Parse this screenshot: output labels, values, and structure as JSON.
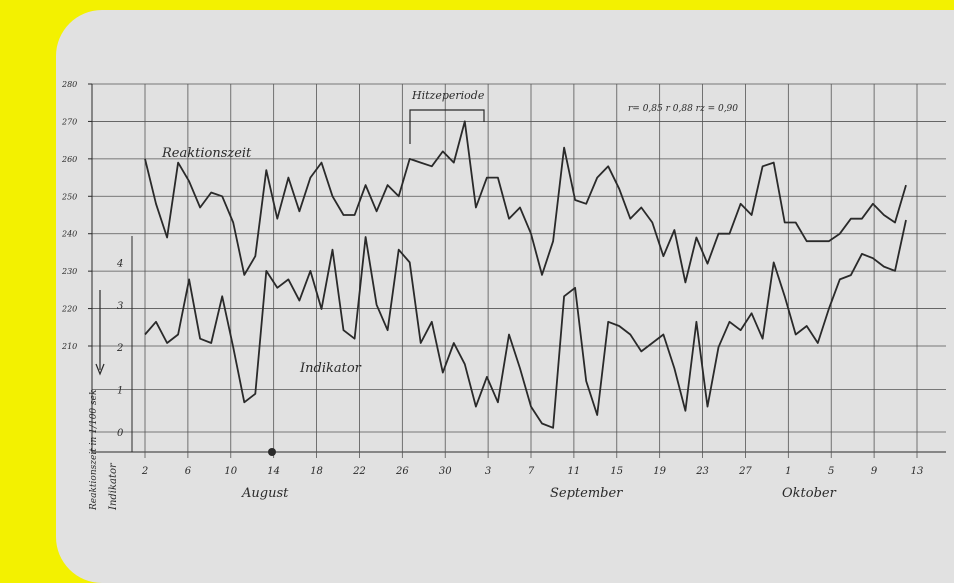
{
  "chart_data": {
    "type": "line",
    "title": "",
    "annotation_stats": "r= 0,85  r 0,88   rz = 0,90",
    "annotation_period": "Hitzeperiode",
    "series": [
      {
        "name": "Reaktionszeit",
        "axis": "left",
        "values": [
          260,
          248,
          239,
          259,
          254,
          247,
          251,
          250,
          243,
          229,
          234,
          257,
          244,
          255,
          246,
          255,
          259,
          250,
          245,
          245,
          253,
          246,
          253,
          250,
          260,
          259,
          258,
          262,
          259,
          270,
          247,
          255,
          255,
          244,
          247,
          240,
          229,
          238,
          263,
          249,
          248,
          255,
          258,
          252,
          244,
          247,
          243,
          234,
          241,
          227,
          239,
          232,
          240,
          240,
          248,
          245,
          258,
          259,
          243,
          243,
          238,
          238,
          238,
          240,
          244,
          244,
          248,
          245,
          243,
          253
        ]
      },
      {
        "name": "Indikator",
        "axis": "right",
        "values": [
          2.3,
          2.6,
          2.1,
          2.3,
          3.6,
          2.2,
          2.1,
          3.2,
          2.0,
          0.7,
          0.9,
          3.8,
          3.4,
          3.6,
          3.1,
          3.8,
          2.9,
          4.3,
          2.4,
          2.2,
          4.6,
          3.0,
          2.4,
          4.3,
          4.0,
          2.1,
          2.6,
          1.4,
          2.1,
          1.6,
          0.6,
          1.3,
          0.7,
          2.3,
          1.5,
          0.6,
          0.2,
          0.1,
          3.2,
          3.4,
          1.2,
          0.4,
          2.6,
          2.5,
          2.3,
          1.9,
          2.1,
          2.3,
          1.5,
          0.5,
          2.6,
          0.6,
          2.0,
          2.6,
          2.4,
          2.8,
          2.2,
          4.0,
          3.2,
          2.3,
          2.5,
          2.1,
          2.9,
          3.6,
          3.7,
          4.2,
          4.1,
          3.9,
          3.8,
          5.0
        ]
      }
    ],
    "y_left": {
      "range": [
        0,
        280
      ],
      "ticks": [
        "210",
        "220",
        "230",
        "240",
        "250",
        "260",
        "270",
        "280"
      ]
    },
    "y_right": {
      "range": [
        0,
        5
      ],
      "ticks": [
        "0",
        "1",
        "2",
        "3",
        "4"
      ]
    },
    "ylabel_left": "Reaktionszeit in 1/100 sek",
    "ylabel_right": "Indikator",
    "x_ticks": [
      "2",
      "6",
      "10",
      "14",
      "18",
      "22",
      "26",
      "30",
      "3",
      "7",
      "11",
      "15",
      "19",
      "23",
      "27",
      "1",
      "5",
      "9",
      "13"
    ],
    "months": [
      "August",
      "September",
      "Oktober"
    ],
    "grid": true,
    "legend": "inline labels"
  },
  "colors": {
    "frame": "#f3f100",
    "panel": "#e1e1e1",
    "ink": "#2a2a2a",
    "grid": "#555555"
  }
}
